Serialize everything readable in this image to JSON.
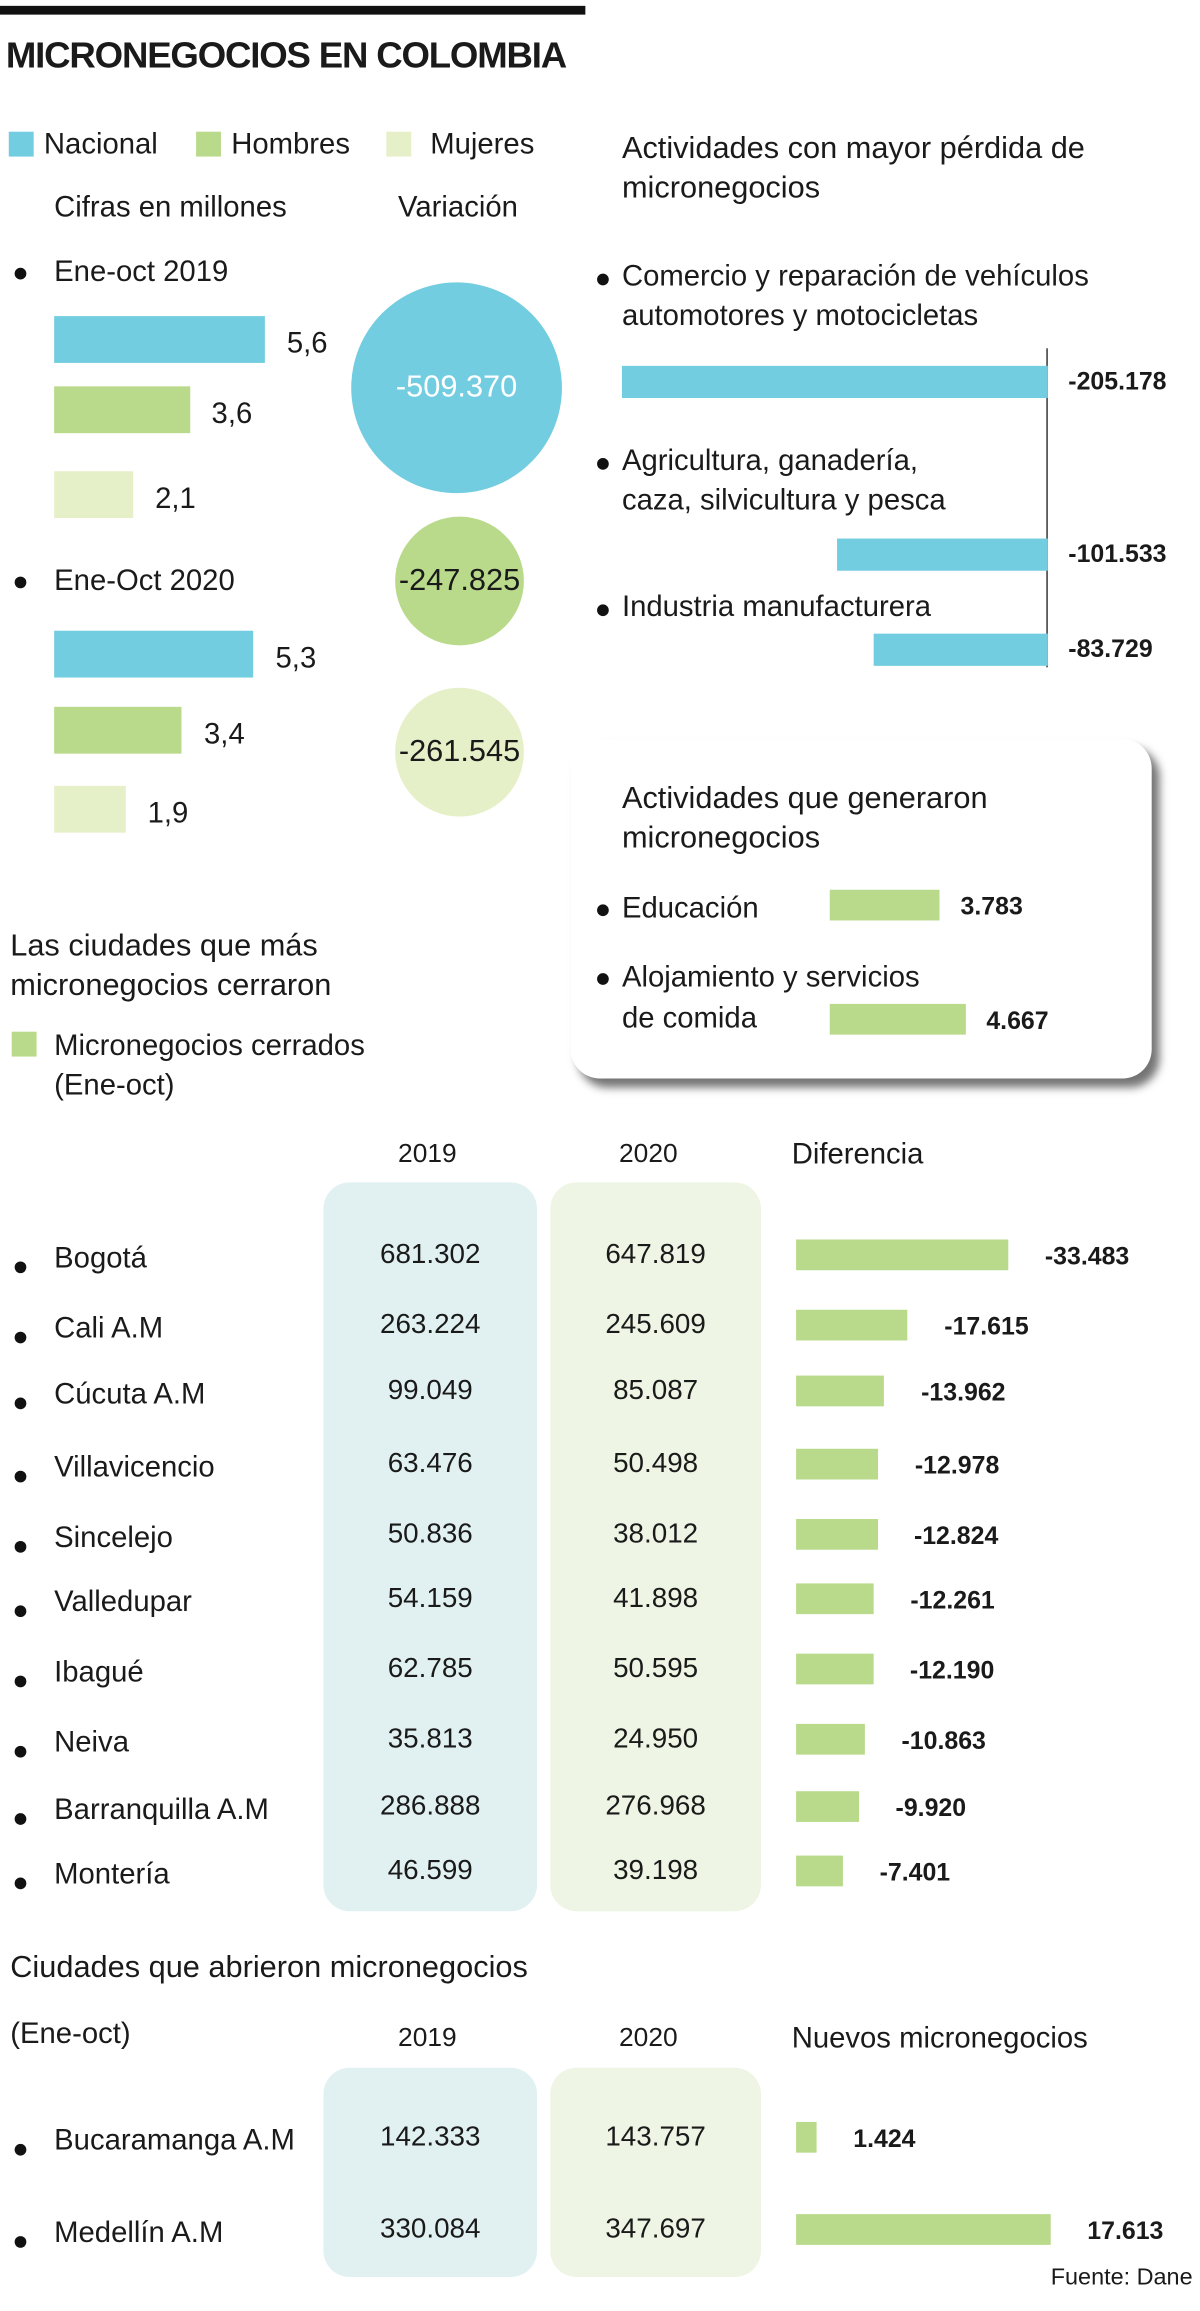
{
  "title": "MICRONEGOCIOS EN COLOMBIA",
  "colors": {
    "nacional": "#72cde0",
    "hombres": "#b9da8b",
    "mujeres": "#e6f0c8",
    "col2019": "#e1f1f1",
    "col2020": "#eef5e4"
  },
  "legend": [
    "Nacional",
    "Hombres",
    "Mujeres"
  ],
  "units_label": "Cifras en millones",
  "variation_label": "Variación",
  "fuente": "Fuente: Dane",
  "chart_data": [
    {
      "type": "bar",
      "units": "Cifras en millones",
      "categories": [
        "Ene-oct 2019",
        "Ene-Oct 2020"
      ],
      "series": [
        {
          "name": "Nacional",
          "values": [
            5.6,
            5.3
          ],
          "labels": [
            "5,6",
            "5,3"
          ]
        },
        {
          "name": "Hombres",
          "values": [
            3.6,
            3.4
          ],
          "labels": [
            "3,6",
            "3,4"
          ]
        },
        {
          "name": "Mujeres",
          "values": [
            2.1,
            1.9
          ],
          "labels": [
            "2,1",
            "1,9"
          ]
        }
      ],
      "variation": {
        "label": "Variación",
        "values": [
          "-509.370",
          "-247.825",
          "-261.545"
        ]
      }
    },
    {
      "type": "bar",
      "title": "Actividades con mayor pérdida de micronegocios",
      "categories": [
        [
          "Comercio y reparación de vehículos",
          "automotores y motocicletas"
        ],
        [
          "Agricultura, ganadería,",
          "caza, silvicultura y pesca"
        ],
        [
          "Industria manufacturera"
        ]
      ],
      "values": [
        -205178,
        -101533,
        -83729
      ],
      "labels": [
        "-205.178",
        "-101.533",
        "-83.729"
      ]
    },
    {
      "type": "bar",
      "title": "Actividades que generaron micronegocios",
      "categories": [
        [
          "Educación"
        ],
        [
          "Alojamiento y servicios",
          "de comida"
        ]
      ],
      "values": [
        3783,
        4667
      ],
      "labels": [
        "3.783",
        "4.667"
      ]
    },
    {
      "type": "table",
      "title": "Las ciudades que más micronegocios cerraron",
      "legend": [
        "Micronegocios cerrados",
        "(Ene-oct)"
      ],
      "columns": [
        "2019",
        "2020",
        "Diferencia"
      ],
      "rows": [
        {
          "city": "Bogotá",
          "y2019": "681.302",
          "y2020": "647.819",
          "diff": -33483,
          "diff_label": "-33.483"
        },
        {
          "city": "Cali A.M",
          "y2019": "263.224",
          "y2020": "245.609",
          "diff": -17615,
          "diff_label": "-17.615"
        },
        {
          "city": "Cúcuta A.M",
          "y2019": "99.049",
          "y2020": "85.087",
          "diff": -13962,
          "diff_label": "-13.962"
        },
        {
          "city": "Villavicencio",
          "y2019": "63.476",
          "y2020": "50.498",
          "diff": -12978,
          "diff_label": "-12.978"
        },
        {
          "city": "Sincelejo",
          "y2019": "50.836",
          "y2020": "38.012",
          "diff": -12824,
          "diff_label": "-12.824"
        },
        {
          "city": "Valledupar",
          "y2019": "54.159",
          "y2020": "41.898",
          "diff": -12261,
          "diff_label": "-12.261"
        },
        {
          "city": "Ibagué",
          "y2019": "62.785",
          "y2020": "50.595",
          "diff": -12190,
          "diff_label": "-12.190"
        },
        {
          "city": "Neiva",
          "y2019": "35.813",
          "y2020": "24.950",
          "diff": -10863,
          "diff_label": "-10.863"
        },
        {
          "city": "Barranquilla A.M",
          "y2019": "286.888",
          "y2020": "276.968",
          "diff": -9920,
          "diff_label": "-9.920"
        },
        {
          "city": "Montería",
          "y2019": "46.599",
          "y2020": "39.198",
          "diff": -7401,
          "diff_label": "-7.401"
        }
      ]
    },
    {
      "type": "table",
      "title": "Ciudades que abrieron micronegocios",
      "subtitle": "(Ene-oct)",
      "columns": [
        "2019",
        "2020",
        "Nuevos micronegocios"
      ],
      "rows": [
        {
          "city": "Bucaramanga A.M",
          "y2019": "142.333",
          "y2020": "143.757",
          "diff": 1424,
          "diff_label": "1.424"
        },
        {
          "city": "Medellín A.M",
          "y2019": "330.084",
          "y2020": "347.697",
          "diff": 17613,
          "diff_label": "17.613"
        }
      ]
    }
  ]
}
